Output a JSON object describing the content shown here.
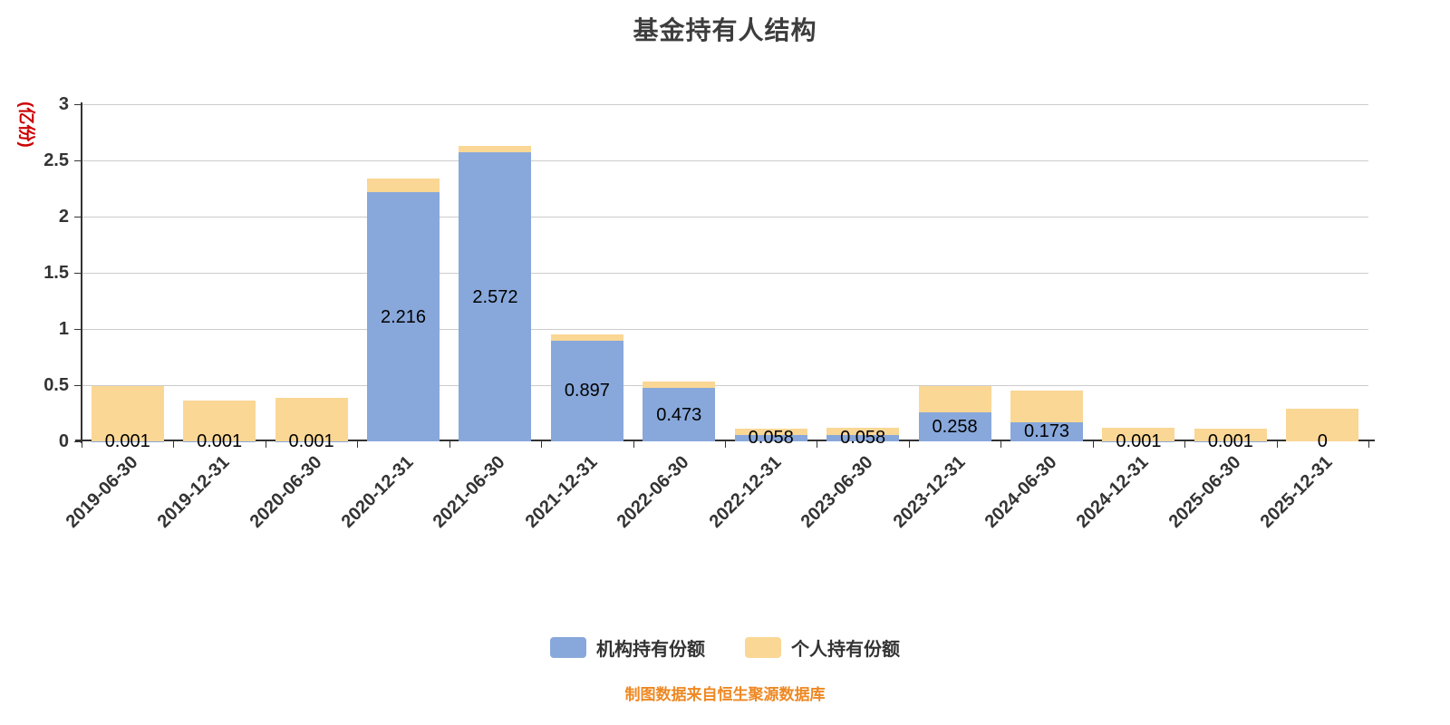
{
  "title": "基金持有人结构",
  "footer": "制图数据来自恒生聚源数据库",
  "colors": {
    "institutional": "#88A8DB",
    "personal": "#FAD795",
    "y_axis_label": "#CC0000",
    "footer_text": "#EE8822",
    "axis": "#333333",
    "grid": "#CCCCCC",
    "title_text": "#3D3D3D"
  },
  "legend": [
    {
      "label": "机构持有份额",
      "color": "#88A8DB"
    },
    {
      "label": "个人持有份额",
      "color": "#FAD795"
    }
  ],
  "chart_data": {
    "type": "bar",
    "stacked": true,
    "title": "基金持有人结构",
    "xlabel": "",
    "ylabel": "(亿份)",
    "ylim": [
      0,
      3
    ],
    "yticks": [
      0,
      0.5,
      1,
      1.5,
      2,
      2.5,
      3
    ],
    "grid": true,
    "legend_position": "bottom",
    "categories": [
      "2019-06-30",
      "2019-12-31",
      "2020-06-30",
      "2020-12-31",
      "2021-06-30",
      "2021-12-31",
      "2022-06-30",
      "2022-12-31",
      "2023-06-30",
      "2023-12-31",
      "2024-06-30",
      "2024-12-31",
      "2025-06-30",
      "2025-12-31"
    ],
    "series": [
      {
        "name": "机构持有份额",
        "color": "#88A8DB",
        "values": [
          0.001,
          0.001,
          0.001,
          2.216,
          2.572,
          0.897,
          0.473,
          0.058,
          0.058,
          0.258,
          0.173,
          0.001,
          0.001,
          0
        ]
      },
      {
        "name": "个人持有份额",
        "color": "#FAD795",
        "values": [
          0.49,
          0.36,
          0.385,
          0.12,
          0.06,
          0.055,
          0.06,
          0.055,
          0.065,
          0.235,
          0.28,
          0.12,
          0.11,
          0.29
        ]
      }
    ],
    "bar_value_labels": [
      "0.001",
      "0.001",
      "0.001",
      "2.216",
      "2.572",
      "0.897",
      "0.473",
      "0.058",
      "0.058",
      "0.258",
      "0.173",
      "0.001",
      "0.001",
      "0"
    ]
  }
}
